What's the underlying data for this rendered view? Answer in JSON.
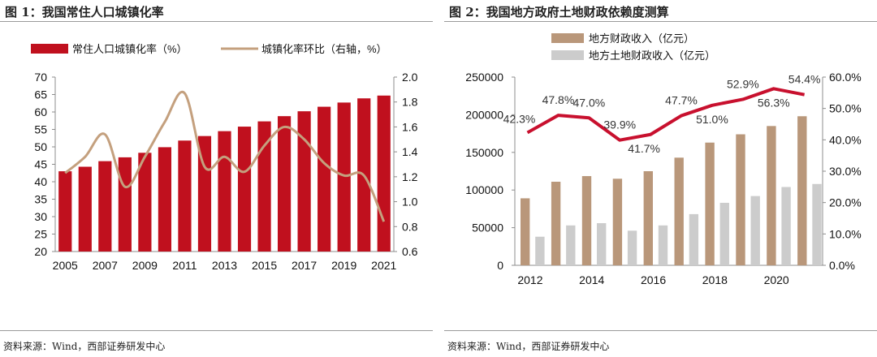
{
  "figures": [
    {
      "title": "图 1：我国常住人口城镇化率",
      "source": "资料来源：Wind，西部证券研发中心"
    },
    {
      "title": "图 2：我国地方政府土地财政依赖度测算",
      "source": "资料来源：Wind，西部证券研发中心"
    }
  ],
  "colors": {
    "red_bar": "#C0101E",
    "tan_line": "#C4A07E",
    "brown_bar": "#B9977A",
    "gray_bar": "#CCCCCC",
    "red_line": "#C8102E",
    "text": "#111111"
  },
  "chart_data": [
    {
      "type": "bar",
      "title": "我国常住人口城镇化率",
      "categories": [
        "2005",
        "2006",
        "2007",
        "2008",
        "2009",
        "2010",
        "2011",
        "2012",
        "2013",
        "2014",
        "2015",
        "2016",
        "2017",
        "2018",
        "2019",
        "2020",
        "2021"
      ],
      "x_tick_labels": [
        "2005",
        "2007",
        "2009",
        "2011",
        "2013",
        "2015",
        "2017",
        "2019",
        "2021"
      ],
      "series": [
        {
          "name": "常住人口城镇化率（%）",
          "type": "bar",
          "axis": "left",
          "values": [
            43.0,
            44.3,
            45.9,
            47.0,
            48.3,
            49.9,
            51.8,
            53.1,
            54.5,
            55.8,
            57.3,
            58.8,
            60.2,
            61.5,
            62.7,
            63.9,
            64.7
          ]
        },
        {
          "name": "城镇化率环比（右轴，%）",
          "type": "line",
          "axis": "right",
          "values": [
            1.23,
            1.36,
            1.54,
            1.12,
            1.36,
            1.64,
            1.87,
            1.28,
            1.36,
            1.24,
            1.45,
            1.6,
            1.5,
            1.31,
            1.21,
            1.21,
            0.84
          ]
        }
      ],
      "left_axis": {
        "min": 20,
        "max": 70,
        "ticks": [
          "20",
          "25",
          "30",
          "35",
          "40",
          "45",
          "50",
          "55",
          "60",
          "65",
          "70"
        ]
      },
      "right_axis": {
        "min": 0.6,
        "max": 2.0,
        "ticks": [
          "0.6",
          "0.8",
          "1.0",
          "1.2",
          "1.4",
          "1.6",
          "1.8",
          "2.0"
        ]
      }
    },
    {
      "type": "bar",
      "title": "我国地方政府土地财政依赖度测算",
      "categories": [
        "2012",
        "2013",
        "2014",
        "2015",
        "2016",
        "2017",
        "2018",
        "2019",
        "2020",
        "2021"
      ],
      "x_tick_labels": [
        "2012",
        "2014",
        "2016",
        "2018",
        "2020"
      ],
      "series": [
        {
          "name": "地方财政收入（亿元）",
          "type": "bar",
          "axis": "left",
          "values": [
            89000,
            111000,
            118500,
            115000,
            125000,
            143000,
            163000,
            174000,
            185000,
            198000
          ]
        },
        {
          "name": "地方土地财政收入（亿元）",
          "type": "bar",
          "axis": "left",
          "values": [
            38000,
            53000,
            56000,
            46000,
            53000,
            68000,
            83000,
            92000,
            104000,
            108000
          ]
        },
        {
          "name": "土地财政依赖度（%）",
          "type": "line",
          "axis": "right",
          "values": [
            42.3,
            47.8,
            47.0,
            39.9,
            41.7,
            47.7,
            51.0,
            52.9,
            56.3,
            54.4
          ],
          "labels": [
            "42.3%",
            "47.8%",
            "47.0%",
            "39.9%",
            "41.7%",
            "47.7%",
            "51.0%",
            "52.9%",
            "56.3%",
            "54.4%"
          ]
        }
      ],
      "left_axis": {
        "min": 0,
        "max": 250000,
        "ticks": [
          "0",
          "50000",
          "100000",
          "150000",
          "200000",
          "250000"
        ]
      },
      "right_axis": {
        "min": 0,
        "max": 60,
        "ticks": [
          "0.0%",
          "10.0%",
          "20.0%",
          "30.0%",
          "40.0%",
          "50.0%",
          "60.0%"
        ]
      }
    }
  ]
}
